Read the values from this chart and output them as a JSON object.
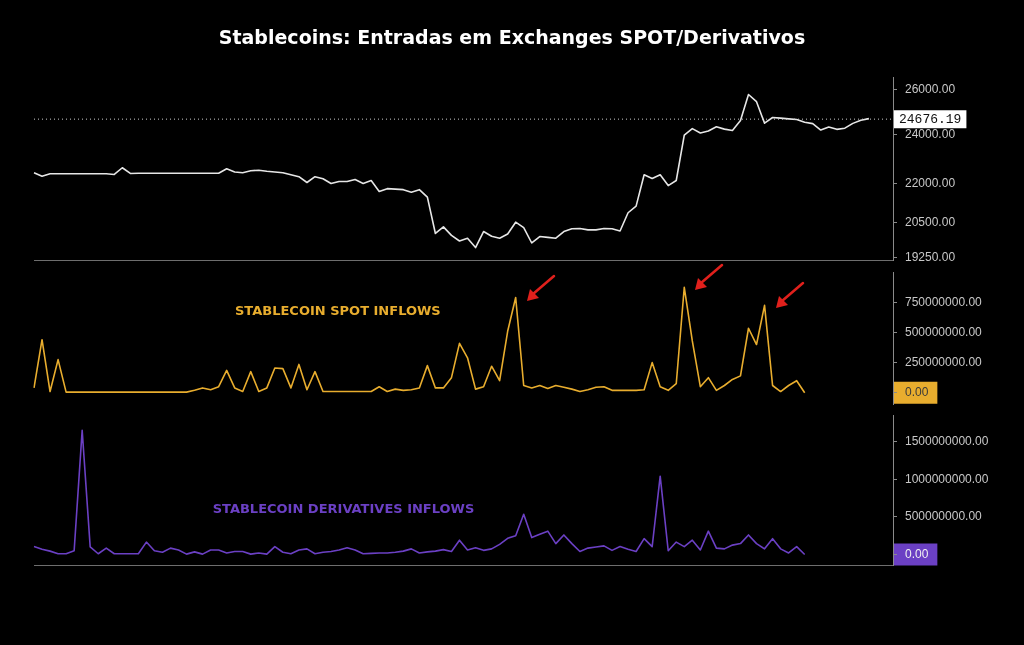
{
  "chart_data": [
    {
      "type": "line",
      "title": "Stablecoins: Entradas em Exchanges SPOT/Derivativos",
      "log": "y",
      "tick_labels": "y",
      "ylim": [
        19150,
        26600
      ],
      "categories": [
        null,
        null,
        null,
        null,
        null,
        null,
        null,
        null,
        null,
        null,
        null,
        null,
        null,
        null,
        null,
        null,
        null,
        null,
        null,
        null,
        null,
        null,
        null,
        null,
        null,
        null,
        null,
        null,
        null,
        null,
        null,
        null,
        null,
        null,
        null,
        null,
        null,
        null,
        null,
        null,
        null,
        null,
        null,
        null,
        null,
        null,
        null,
        null,
        null,
        null,
        null,
        null,
        null,
        null,
        null,
        null,
        null,
        null,
        null,
        null,
        null,
        null,
        null,
        null,
        null,
        null,
        null,
        null,
        null,
        null,
        null,
        null,
        null,
        null,
        null,
        null,
        null,
        null,
        null,
        null,
        null,
        null,
        null,
        null,
        null,
        null,
        null,
        null,
        null,
        null,
        null,
        null,
        null,
        null,
        null,
        null,
        null,
        null,
        null,
        null,
        null,
        null,
        null,
        null,
        null,
        null,
        null,
        null
      ],
      "yticks": [
        {
          "value": 19250,
          "label": "19250.00"
        },
        {
          "value": 20500,
          "label": "20500.00"
        },
        {
          "value": 22000,
          "label": "22000.00"
        },
        {
          "value": 24000,
          "label": "24000.00"
        },
        {
          "value": 26000,
          "label": "26000.00"
        }
      ],
      "ref_lines": [
        {
          "axis": "y",
          "value": 24676.19,
          "label": "24676.19",
          "color": "#cccccc",
          "line_style": "dotted"
        }
      ],
      "series": [
        {
          "color": "#e6e6e6",
          "values": [
            22420,
            22280,
            22380,
            22380,
            22380,
            22380,
            22380,
            22380,
            22380,
            22380,
            22350,
            22620,
            22390,
            22400,
            22400,
            22400,
            22400,
            22400,
            22400,
            22400,
            22400,
            22400,
            22400,
            22400,
            22580,
            22450,
            22420,
            22500,
            22520,
            22480,
            22450,
            22420,
            22340,
            22260,
            22030,
            22260,
            22180,
            21990,
            22070,
            22070,
            22150,
            21990,
            22110,
            21680,
            21790,
            21770,
            21750,
            21650,
            21750,
            21460,
            20110,
            20350,
            20040,
            19840,
            19940,
            19610,
            20180,
            20010,
            19940,
            20090,
            20520,
            20320,
            19770,
            20000,
            19970,
            19940,
            20180,
            20280,
            20290,
            20240,
            20240,
            20290,
            20280,
            20200,
            20870,
            21120,
            22340,
            22190,
            22340,
            21910,
            22110,
            23980,
            24260,
            24070,
            24160,
            24340,
            24240,
            24180,
            24620,
            25790,
            25460,
            24500,
            24750,
            24720,
            24690,
            24660,
            24540,
            24480,
            24200,
            24330,
            24230,
            24280,
            24490,
            24630,
            24700,
            null,
            null,
            null
          ]
        }
      ]
    },
    {
      "type": "line",
      "tick_labels": "y",
      "ylim": [
        -100000000,
        1000000000
      ],
      "categories": [
        null,
        null,
        null,
        null,
        null,
        null,
        null,
        null,
        null,
        null,
        null,
        null,
        null,
        null,
        null,
        null,
        null,
        null,
        null,
        null,
        null,
        null,
        null,
        null,
        null,
        null,
        null,
        null,
        null,
        null,
        null,
        null,
        null,
        null,
        null,
        null,
        null,
        null,
        null,
        null,
        null,
        null,
        null,
        null,
        null,
        null,
        null,
        null,
        null,
        null,
        null,
        null,
        null,
        null,
        null,
        null,
        null,
        null,
        null,
        null,
        null,
        null,
        null,
        null,
        null,
        null,
        null,
        null,
        null,
        null,
        null,
        null,
        null,
        null,
        null,
        null,
        null,
        null,
        null,
        null,
        null,
        null,
        null,
        null,
        null,
        null,
        null,
        null,
        null,
        null,
        null,
        null,
        null,
        null,
        null,
        null,
        null,
        null,
        null,
        null,
        null,
        null,
        null,
        null,
        null,
        null,
        null,
        null
      ],
      "yticks": [
        {
          "value": 0,
          "label": "0.00"
        },
        {
          "value": 250000000,
          "label": "250000000.00"
        },
        {
          "value": 500000000,
          "label": "500000000.00"
        },
        {
          "value": 750000000,
          "label": "750000000.00"
        }
      ],
      "series": [
        {
          "name": "STABLECOIN SPOT INFLOWS",
          "color": "#e8ad2e",
          "values": [
            40000000,
            440000000,
            10000000,
            275000000,
            5000000,
            5000000,
            5000000,
            5000000,
            5000000,
            5000000,
            5000000,
            5000000,
            5000000,
            5000000,
            5000000,
            5000000,
            5000000,
            5000000,
            5000000,
            5000000,
            20000000,
            40000000,
            25000000,
            50000000,
            185000000,
            40000000,
            10000000,
            175000000,
            10000000,
            40000000,
            205000000,
            200000000,
            40000000,
            235000000,
            25000000,
            175000000,
            10000000,
            10000000,
            10000000,
            10000000,
            10000000,
            10000000,
            10000000,
            50000000,
            10000000,
            30000000,
            20000000,
            25000000,
            40000000,
            225000000,
            40000000,
            40000000,
            125000000,
            410000000,
            290000000,
            30000000,
            50000000,
            220000000,
            100000000,
            510000000,
            790000000,
            60000000,
            40000000,
            60000000,
            35000000,
            60000000,
            45000000,
            30000000,
            10000000,
            25000000,
            45000000,
            50000000,
            20000000,
            20000000,
            20000000,
            20000000,
            25000000,
            250000000,
            50000000,
            20000000,
            75000000,
            875000000,
            430000000,
            50000000,
            125000000,
            20000000,
            60000000,
            110000000,
            140000000,
            535000000,
            400000000,
            725000000,
            60000000,
            10000000,
            60000000,
            100000000,
            0,
            null,
            null,
            null,
            null,
            null,
            null,
            null,
            null,
            null,
            null,
            null
          ]
        }
      ]
    },
    {
      "type": "line",
      "tick_labels": "y",
      "ylim": [
        -150000000,
        1850000000
      ],
      "categories": [
        null,
        null,
        null,
        null,
        null,
        null,
        null,
        null,
        null,
        null,
        null,
        null,
        null,
        null,
        null,
        null,
        null,
        null,
        null,
        null,
        null,
        null,
        null,
        null,
        null,
        null,
        null,
        null,
        null,
        null,
        null,
        null,
        null,
        null,
        null,
        null,
        null,
        null,
        null,
        null,
        null,
        null,
        null,
        null,
        null,
        null,
        null,
        null,
        null,
        null,
        null,
        null,
        null,
        null,
        null,
        null,
        null,
        null,
        null,
        null,
        null,
        null,
        null,
        null,
        null,
        null,
        null,
        null,
        null,
        null,
        null,
        null,
        null,
        null,
        null,
        null,
        null,
        null,
        null,
        null,
        null,
        null,
        null,
        null,
        null,
        null,
        null,
        null,
        null,
        null,
        null,
        null,
        null,
        null,
        null,
        null,
        null,
        null,
        null,
        null,
        null,
        null,
        null,
        null,
        null,
        null,
        null,
        null
      ],
      "yticks": [
        {
          "value": 0,
          "label": "0.00"
        },
        {
          "value": 500000000,
          "label": "500000000.00"
        },
        {
          "value": 1000000000,
          "label": "1000000000.00"
        },
        {
          "value": 1500000000,
          "label": "1500000000.00"
        }
      ],
      "series": [
        {
          "name": "STABLECOIN DERIVATIVES INFLOWS",
          "color": "#6b40c4",
          "values": [
            105000000,
            70000000,
            45000000,
            10000000,
            10000000,
            50000000,
            1650000000,
            100000000,
            10000000,
            85000000,
            10000000,
            10000000,
            10000000,
            10000000,
            165000000,
            50000000,
            30000000,
            85000000,
            60000000,
            5000000,
            35000000,
            5000000,
            60000000,
            60000000,
            20000000,
            40000000,
            40000000,
            5000000,
            20000000,
            5000000,
            105000000,
            30000000,
            10000000,
            60000000,
            75000000,
            10000000,
            30000000,
            40000000,
            60000000,
            90000000,
            60000000,
            10000000,
            15000000,
            20000000,
            20000000,
            30000000,
            45000000,
            75000000,
            20000000,
            35000000,
            45000000,
            65000000,
            40000000,
            190000000,
            60000000,
            90000000,
            55000000,
            75000000,
            135000000,
            215000000,
            250000000,
            535000000,
            225000000,
            270000000,
            310000000,
            145000000,
            260000000,
            145000000,
            40000000,
            85000000,
            100000000,
            115000000,
            55000000,
            105000000,
            70000000,
            40000000,
            210000000,
            105000000,
            1040000000,
            50000000,
            165000000,
            105000000,
            190000000,
            60000000,
            310000000,
            85000000,
            75000000,
            125000000,
            145000000,
            260000000,
            145000000,
            75000000,
            210000000,
            75000000,
            20000000,
            105000000,
            0,
            null,
            null,
            null,
            null,
            null,
            null,
            null,
            null,
            null,
            null,
            null
          ]
        }
      ]
    }
  ]
}
